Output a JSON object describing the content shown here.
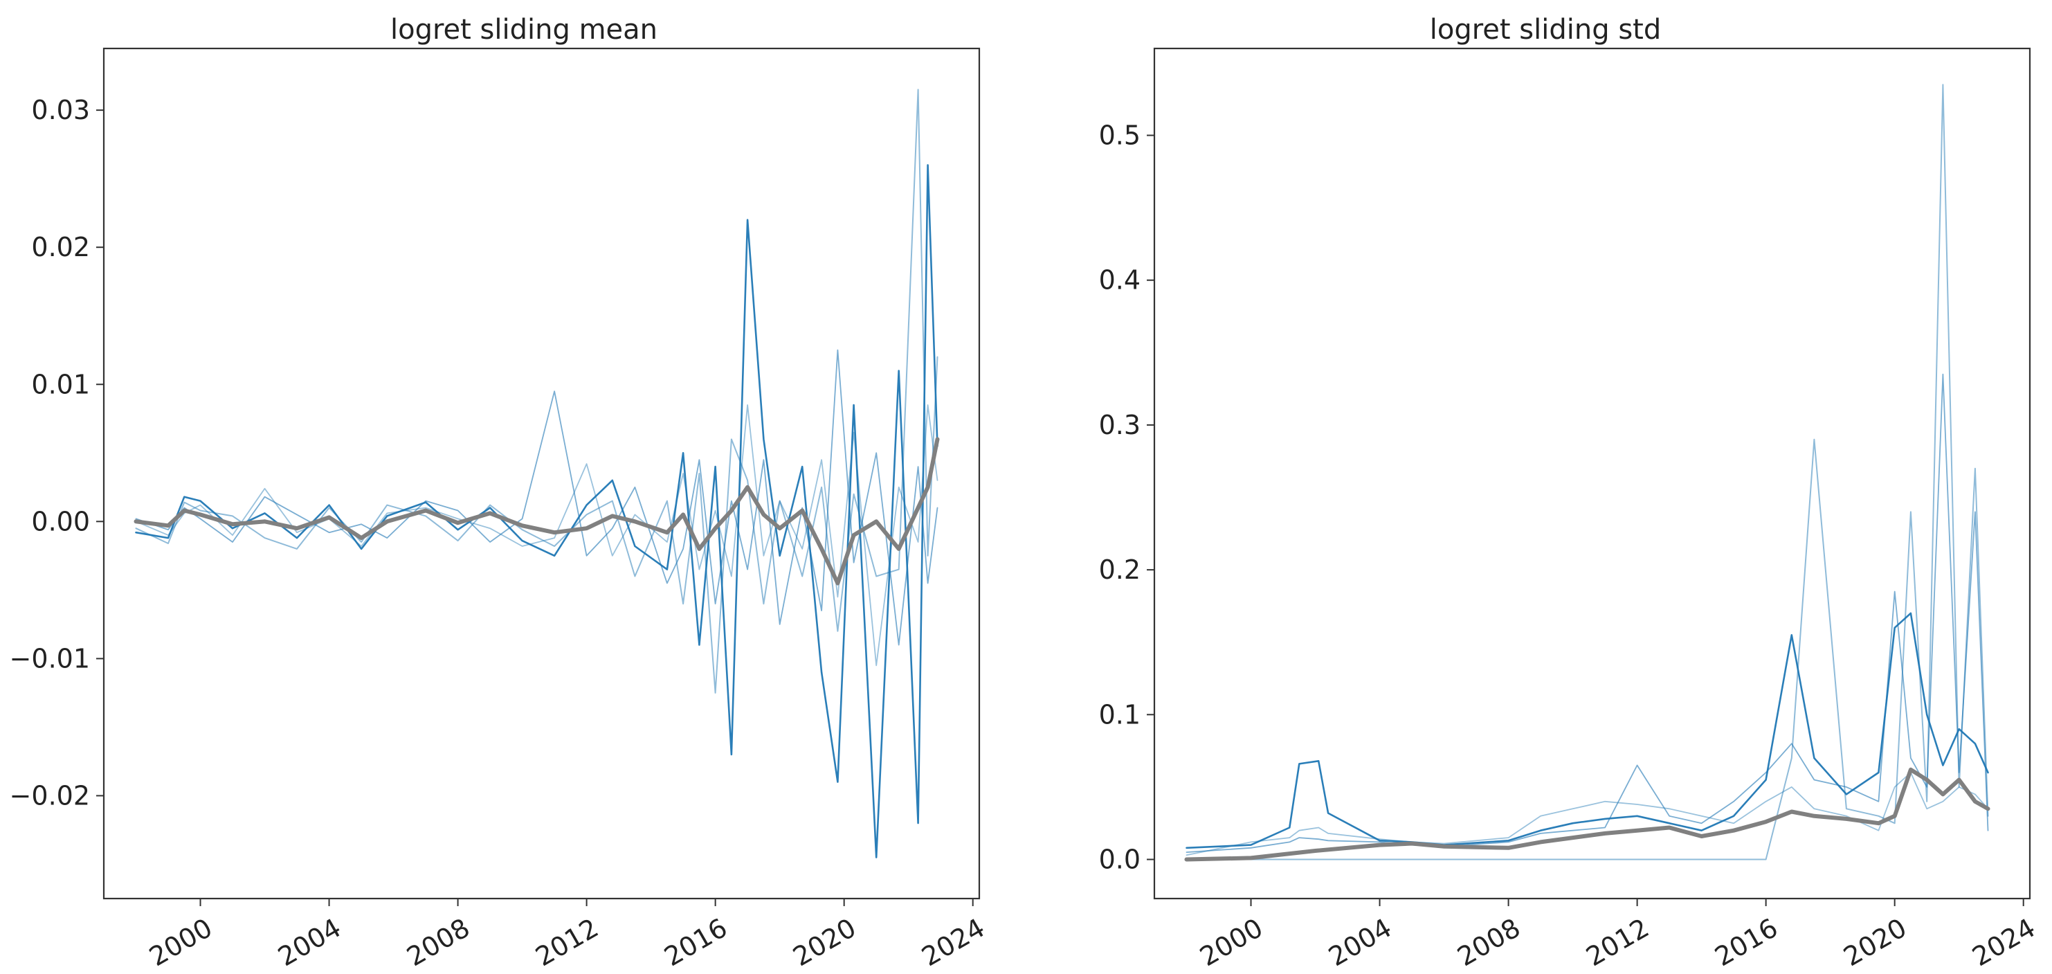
{
  "chart_data": [
    {
      "type": "line",
      "title": "logret sliding mean",
      "xlabel": "",
      "ylabel": "",
      "x_ticks": [
        "2000",
        "2004",
        "2008",
        "2012",
        "2016",
        "2020",
        "2024"
      ],
      "y_ticks": [
        "−0.02",
        "−0.01",
        "0.00",
        "0.01",
        "0.02",
        "0.03"
      ],
      "xlim": [
        1997.0,
        2024.2
      ],
      "ylim": [
        -0.0275,
        0.0345
      ],
      "grid": false,
      "colors": {
        "series": "#1f77b4",
        "aggregate": "#808080"
      },
      "series": [
        {
          "role": "aggregate",
          "x": [
            1998.0,
            1999.0,
            1999.5,
            2000.0,
            2001.0,
            2002.0,
            2003.0,
            2004.0,
            2005.0,
            2005.8,
            2007.0,
            2008.0,
            2009.0,
            2010.0,
            2011.0,
            2012.0,
            2012.8,
            2013.5,
            2014.5,
            2015.0,
            2015.5,
            2016.0,
            2016.5,
            2017.0,
            2017.5,
            2018.0,
            2018.7,
            2019.3,
            2019.8,
            2020.3,
            2021.0,
            2021.7,
            2022.3,
            2022.6,
            2022.9
          ],
          "values": [
            0.0,
            -0.0003,
            0.0008,
            0.0005,
            -0.0002,
            0.0,
            -0.0005,
            0.0003,
            -0.0012,
            0.0,
            0.0008,
            -0.0001,
            0.0006,
            -0.0003,
            -0.0008,
            -0.0005,
            0.0004,
            0.0,
            -0.0008,
            0.0005,
            -0.002,
            -0.0005,
            0.0008,
            0.0025,
            0.0005,
            -0.0005,
            0.0008,
            -0.002,
            -0.0045,
            -0.001,
            0.0,
            -0.002,
            0.001,
            0.0025,
            0.006
          ]
        },
        {
          "role": "component",
          "x": [
            1998.0,
            1999.0,
            1999.5,
            2000.0,
            2001.0,
            2002.0,
            2003.0,
            2004.0,
            2005.0,
            2005.8,
            2007.0,
            2008.0,
            2009.0,
            2010.0,
            2011.0,
            2012.0,
            2012.8,
            2013.5,
            2014.5,
            2015.0,
            2015.5,
            2016.0,
            2016.5,
            2017.0,
            2017.5,
            2018.0,
            2018.7,
            2019.3,
            2019.8,
            2020.3,
            2021.0,
            2021.7,
            2022.3,
            2022.6,
            2022.9
          ],
          "values": [
            -0.0008,
            -0.0012,
            0.0018,
            0.0015,
            -0.0005,
            0.0006,
            -0.0012,
            0.0012,
            -0.002,
            0.0004,
            0.0014,
            -0.0006,
            0.001,
            -0.0014,
            -0.0025,
            0.0012,
            0.003,
            -0.0018,
            -0.0035,
            0.005,
            -0.009,
            0.004,
            -0.017,
            0.022,
            0.006,
            -0.0025,
            0.004,
            -0.011,
            -0.019,
            0.0085,
            -0.0245,
            0.011,
            -0.022,
            0.026,
            0.0055
          ]
        },
        {
          "role": "component",
          "x": [
            1998.0,
            1999.0,
            1999.5,
            2000.0,
            2001.0,
            2002.0,
            2003.0,
            2004.0,
            2005.0,
            2005.8,
            2007.0,
            2008.0,
            2009.0,
            2010.0,
            2011.0,
            2012.0,
            2012.8,
            2013.5,
            2014.5,
            2015.0,
            2015.5,
            2016.0,
            2016.5,
            2017.0,
            2017.5,
            2018.0,
            2018.7,
            2019.3,
            2019.8,
            2020.3,
            2021.0,
            2021.7,
            2022.3,
            2022.6,
            2022.9
          ],
          "values": [
            -0.0005,
            -0.0016,
            0.0014,
            0.0008,
            0.0004,
            -0.0012,
            -0.002,
            0.001,
            -0.0015,
            0.0012,
            0.0004,
            -0.0014,
            0.0012,
            -0.0006,
            -0.0018,
            0.0005,
            0.0015,
            -0.004,
            0.0015,
            -0.006,
            0.0035,
            -0.0125,
            0.006,
            0.003,
            -0.006,
            0.0015,
            -0.004,
            0.0025,
            -0.008,
            0.002,
            -0.004,
            -0.0035,
            0.0315,
            -0.0025,
            0.012
          ]
        },
        {
          "role": "component",
          "x": [
            1998.0,
            1999.0,
            1999.5,
            2000.0,
            2001.0,
            2002.0,
            2003.0,
            2004.0,
            2005.0,
            2005.8,
            2007.0,
            2008.0,
            2009.0,
            2010.0,
            2011.0,
            2012.0,
            2012.8,
            2013.5,
            2014.5,
            2015.0,
            2015.5,
            2016.0,
            2016.5,
            2017.0,
            2017.5,
            2018.0,
            2018.7,
            2019.3,
            2019.8,
            2020.3,
            2021.0,
            2021.7,
            2022.3,
            2022.6,
            2022.9
          ],
          "values": [
            0.0002,
            -0.0006,
            0.001,
            0.0002,
            -0.0015,
            0.0018,
            0.0005,
            -0.0008,
            -0.0002,
            -0.0012,
            0.0015,
            0.0008,
            -0.0015,
            0.0002,
            0.0095,
            -0.0025,
            -0.0005,
            0.0025,
            -0.0045,
            -0.002,
            0.0045,
            -0.006,
            0.0015,
            -0.0035,
            0.0045,
            -0.0075,
            0.001,
            -0.0065,
            0.0125,
            -0.003,
            0.005,
            -0.009,
            0.004,
            -0.0045,
            0.001
          ]
        },
        {
          "role": "component",
          "x": [
            1998.0,
            1999.0,
            1999.5,
            2000.0,
            2001.0,
            2002.0,
            2003.0,
            2004.0,
            2005.0,
            2005.8,
            2007.0,
            2008.0,
            2009.0,
            2010.0,
            2011.0,
            2012.0,
            2012.8,
            2013.5,
            2014.5,
            2015.0,
            2015.5,
            2016.0,
            2016.5,
            2017.0,
            2017.5,
            2018.0,
            2018.7,
            2019.3,
            2019.8,
            2020.3,
            2021.0,
            2021.7,
            2022.3,
            2022.6,
            2022.9
          ],
          "values": [
            0.0,
            -0.001,
            0.0006,
            0.0012,
            -0.001,
            0.0024,
            -0.0008,
            0.0002,
            -0.0018,
            0.0006,
            0.001,
            0.0002,
            -0.0005,
            -0.0018,
            -0.0012,
            0.0042,
            -0.0025,
            0.0005,
            -0.0015,
            0.0035,
            -0.0035,
            0.0008,
            -0.004,
            0.0085,
            -0.0025,
            0.0015,
            -0.002,
            0.0045,
            -0.0055,
            0.0065,
            -0.0105,
            0.0025,
            -0.0015,
            0.0085,
            0.003
          ]
        }
      ]
    },
    {
      "type": "line",
      "title": "logret sliding std",
      "xlabel": "",
      "ylabel": "",
      "x_ticks": [
        "2000",
        "2004",
        "2008",
        "2012",
        "2016",
        "2020",
        "2024"
      ],
      "y_ticks": [
        "0.0",
        "0.1",
        "0.2",
        "0.3",
        "0.4",
        "0.5"
      ],
      "xlim": [
        1997.0,
        2024.2
      ],
      "ylim": [
        -0.027,
        0.56
      ],
      "grid": false,
      "colors": {
        "series": "#1f77b4",
        "aggregate": "#808080"
      },
      "series": [
        {
          "role": "aggregate",
          "x": [
            1998.0,
            2000.0,
            2002.0,
            2004.0,
            2005.0,
            2006.0,
            2008.0,
            2009.0,
            2010.0,
            2011.0,
            2012.0,
            2013.0,
            2014.0,
            2015.0,
            2016.0,
            2016.8,
            2017.5,
            2018.5,
            2019.5,
            2020.0,
            2020.5,
            2021.0,
            2021.5,
            2022.0,
            2022.5,
            2022.9
          ],
          "values": [
            0.0,
            0.001,
            0.006,
            0.01,
            0.011,
            0.009,
            0.008,
            0.012,
            0.015,
            0.018,
            0.02,
            0.022,
            0.016,
            0.02,
            0.026,
            0.033,
            0.03,
            0.028,
            0.025,
            0.03,
            0.062,
            0.055,
            0.045,
            0.055,
            0.04,
            0.035
          ]
        },
        {
          "role": "component",
          "x": [
            1998.0,
            2000.0,
            2001.2,
            2001.5,
            2002.1,
            2002.4,
            2004.0,
            2005.0,
            2006.0,
            2008.0,
            2009.0,
            2010.0,
            2011.0,
            2012.0,
            2013.0,
            2014.0,
            2015.0,
            2016.0,
            2016.8,
            2017.5,
            2018.5,
            2019.5,
            2020.0,
            2020.5,
            2021.0,
            2021.5,
            2022.0,
            2022.5,
            2022.9
          ],
          "values": [
            0.008,
            0.01,
            0.022,
            0.066,
            0.068,
            0.032,
            0.013,
            0.012,
            0.01,
            0.013,
            0.02,
            0.025,
            0.028,
            0.03,
            0.025,
            0.02,
            0.03,
            0.055,
            0.155,
            0.07,
            0.045,
            0.06,
            0.16,
            0.17,
            0.1,
            0.065,
            0.09,
            0.08,
            0.06
          ]
        },
        {
          "role": "component",
          "x": [
            1998.0,
            2000.0,
            2001.2,
            2001.5,
            2002.1,
            2002.4,
            2004.0,
            2005.0,
            2006.0,
            2008.0,
            2009.0,
            2010.0,
            2011.0,
            2012.0,
            2013.0,
            2014.0,
            2015.0,
            2016.0,
            2016.8,
            2017.5,
            2018.5,
            2019.5,
            2020.0,
            2020.5,
            2021.0,
            2021.5,
            2022.0,
            2022.5,
            2022.9
          ],
          "values": [
            0.0,
            0.0,
            0.0,
            0.0,
            0.0,
            0.0,
            0.0,
            0.0,
            0.0,
            0.0,
            0.0,
            0.0,
            0.0,
            0.0,
            0.0,
            0.0,
            0.0,
            0.0,
            0.07,
            0.29,
            0.035,
            0.03,
            0.025,
            0.24,
            0.04,
            0.535,
            0.05,
            0.27,
            0.03
          ]
        },
        {
          "role": "component",
          "x": [
            1998.0,
            2000.0,
            2001.2,
            2001.5,
            2002.1,
            2002.4,
            2004.0,
            2005.0,
            2006.0,
            2008.0,
            2009.0,
            2010.0,
            2011.0,
            2012.0,
            2013.0,
            2014.0,
            2015.0,
            2016.0,
            2016.8,
            2017.5,
            2018.5,
            2019.5,
            2020.0,
            2020.5,
            2021.0,
            2021.5,
            2022.0,
            2022.5,
            2022.9
          ],
          "values": [
            0.005,
            0.008,
            0.012,
            0.015,
            0.014,
            0.013,
            0.012,
            0.01,
            0.009,
            0.012,
            0.018,
            0.02,
            0.022,
            0.065,
            0.03,
            0.025,
            0.04,
            0.06,
            0.08,
            0.055,
            0.05,
            0.04,
            0.185,
            0.07,
            0.05,
            0.335,
            0.06,
            0.24,
            0.02
          ]
        },
        {
          "role": "component",
          "x": [
            1998.0,
            2000.0,
            2001.2,
            2001.5,
            2002.1,
            2002.4,
            2004.0,
            2005.0,
            2006.0,
            2008.0,
            2009.0,
            2010.0,
            2011.0,
            2012.0,
            2013.0,
            2014.0,
            2015.0,
            2016.0,
            2016.8,
            2017.5,
            2018.5,
            2019.5,
            2020.0,
            2020.5,
            2021.0,
            2021.5,
            2022.0,
            2022.5,
            2022.9
          ],
          "values": [
            0.003,
            0.012,
            0.015,
            0.02,
            0.022,
            0.018,
            0.014,
            0.012,
            0.011,
            0.015,
            0.03,
            0.035,
            0.04,
            0.038,
            0.035,
            0.03,
            0.025,
            0.04,
            0.05,
            0.035,
            0.03,
            0.02,
            0.05,
            0.06,
            0.035,
            0.04,
            0.05,
            0.045,
            0.035
          ]
        }
      ]
    }
  ]
}
